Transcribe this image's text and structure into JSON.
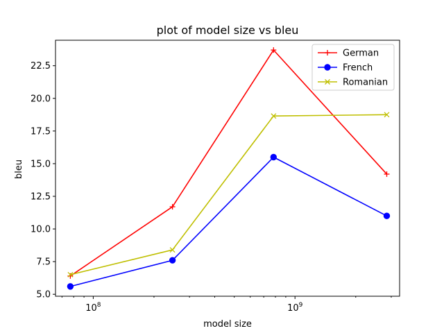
{
  "chart_data": {
    "type": "line",
    "title": "plot of model size vs bleu",
    "xlabel": "model size",
    "ylabel": "bleu",
    "xscale": "log",
    "xlim": [
      65000000,
      3300000000
    ],
    "ylim": [
      4.85,
      24.45
    ],
    "x": [
      77000000,
      247000000,
      783000000,
      2850000000
    ],
    "xticks": [
      {
        "value": 100000000,
        "base": "10",
        "exp": "8"
      },
      {
        "value": 1000000000,
        "base": "10",
        "exp": "9"
      }
    ],
    "yticks": [
      5.0,
      7.5,
      10.0,
      12.5,
      15.0,
      17.5,
      20.0,
      22.5
    ],
    "ytick_labels": [
      "5.0",
      "7.5",
      "10.0",
      "12.5",
      "15.0",
      "17.5",
      "20.0",
      "22.5"
    ],
    "grid": false,
    "legend_position": "top-right",
    "series": [
      {
        "name": "German",
        "color": "#ff0000",
        "marker": "plus",
        "values": [
          6.4,
          11.7,
          23.7,
          14.2
        ]
      },
      {
        "name": "French",
        "color": "#0000ff",
        "marker": "circle",
        "values": [
          5.6,
          7.6,
          15.5,
          11.0
        ]
      },
      {
        "name": "Romanian",
        "color": "#bfbf00",
        "marker": "x",
        "values": [
          6.5,
          8.4,
          18.65,
          18.75
        ]
      }
    ]
  }
}
